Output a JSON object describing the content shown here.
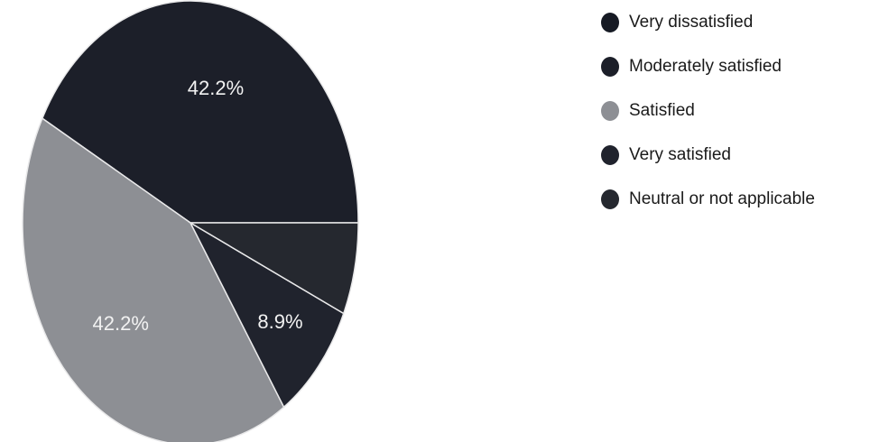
{
  "chart_data": {
    "type": "pie",
    "title": "",
    "slices": [
      {
        "label": "Very dissatisfied",
        "value": 0,
        "value_label": "",
        "color": "#161a24"
      },
      {
        "label": "Moderately satisfied",
        "value": 42.2,
        "value_label": "42.2%",
        "color": "#1c1f29"
      },
      {
        "label": "Satisfied",
        "value": 42.2,
        "value_label": "42.2%",
        "color": "#8d8f94"
      },
      {
        "label": "Very satisfied",
        "value": 8.9,
        "value_label": "8.9%",
        "color": "#20232d"
      },
      {
        "label": "Neutral or not applicable",
        "value": 6.7,
        "value_label": "",
        "color": "#25282f"
      }
    ],
    "legend_position": "right",
    "start_angle_deg": 0,
    "direction": "counterclockwise"
  }
}
